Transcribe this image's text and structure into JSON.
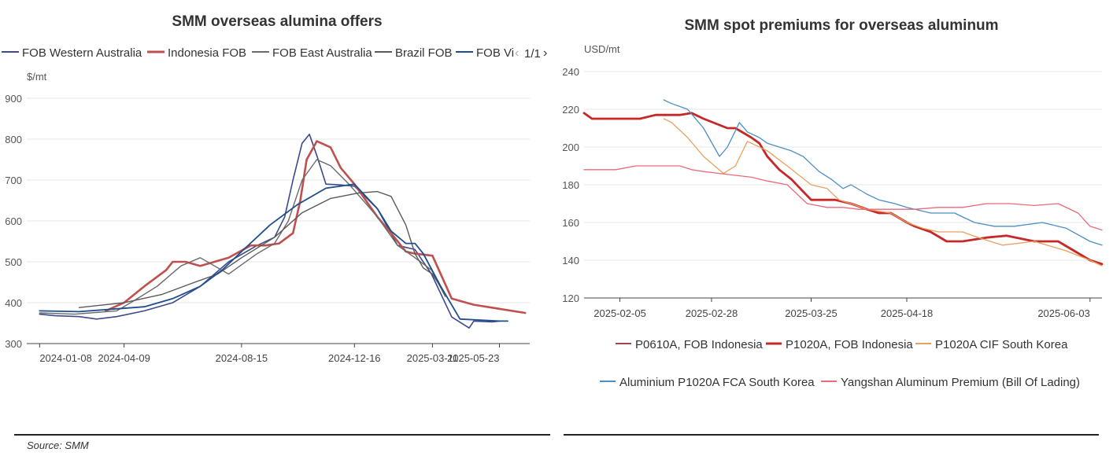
{
  "source": "Source: SMM",
  "pager": {
    "text": "1/1",
    "prev": "‹",
    "next": "›"
  },
  "chart_data": [
    {
      "type": "line",
      "title": "SMM overseas alumina offers",
      "ylabel": "$/mt",
      "ylim": [
        300,
        900
      ],
      "yticks": [
        300,
        400,
        500,
        600,
        700,
        800,
        900
      ],
      "x_tick_labels": [
        "2024-01-08",
        "2024-04-09",
        "2024-08-15",
        "2024-12-16",
        "2025-03-11",
        "2025-05-23"
      ],
      "grid": true,
      "legend_position": "top",
      "legend_visible": [
        "FOB Western Australia",
        "Indonesia FOB",
        "FOB East Australia",
        "Brazil FOB",
        "FOB Vi"
      ],
      "series": [
        {
          "name": "FOB Western Australia",
          "color": "#3b4a8c",
          "x": [
            "2024-01-08",
            "2024-01-25",
            "2024-02-20",
            "2024-03-10",
            "2024-04-01",
            "2024-05-01",
            "2024-06-01",
            "2024-07-01",
            "2024-08-01",
            "2024-09-01",
            "2024-09-20",
            "2024-10-01",
            "2024-10-10",
            "2024-10-20",
            "2024-10-28",
            "2024-11-05",
            "2024-11-15",
            "2024-12-01",
            "2024-12-16",
            "2025-01-10",
            "2025-02-01",
            "2025-02-20",
            "2025-03-10",
            "2025-04-01",
            "2025-04-20",
            "2025-04-25",
            "2025-05-15",
            "2025-05-23"
          ],
          "y": [
            372,
            368,
            366,
            360,
            366,
            380,
            400,
            440,
            500,
            540,
            560,
            610,
            700,
            790,
            812,
            760,
            690,
            688,
            685,
            630,
            540,
            530,
            470,
            365,
            338,
            355,
            353,
            355
          ]
        },
        {
          "name": "Indonesia FOB",
          "color": "#c0504d",
          "x": [
            "2024-03-20",
            "2024-04-09",
            "2024-05-01",
            "2024-05-25",
            "2024-06-01",
            "2024-06-15",
            "2024-07-01",
            "2024-08-01",
            "2024-08-25",
            "2024-09-10",
            "2024-09-25",
            "2024-10-10",
            "2024-10-18",
            "2024-10-25",
            "2024-11-05",
            "2024-11-20",
            "2024-12-01",
            "2024-12-16",
            "2025-01-10",
            "2025-01-25",
            "2025-02-10",
            "2025-02-20",
            "2025-03-11",
            "2025-04-01",
            "2025-04-25",
            "2025-05-23",
            "2025-06-20"
          ],
          "y": [
            380,
            400,
            440,
            480,
            500,
            500,
            490,
            510,
            540,
            540,
            545,
            570,
            650,
            750,
            795,
            780,
            730,
            690,
            610,
            570,
            525,
            520,
            515,
            410,
            395,
            385,
            375
          ]
        },
        {
          "name": "FOB East Australia",
          "color": "#6b6b6b",
          "x": [
            "2024-01-08",
            "2024-02-15",
            "2024-04-01",
            "2024-04-20",
            "2024-05-15",
            "2024-06-10",
            "2024-07-01",
            "2024-08-01",
            "2024-09-01",
            "2024-09-20",
            "2024-10-05",
            "2024-10-20",
            "2024-11-05",
            "2024-11-20",
            "2024-12-10",
            "2025-01-10",
            "2025-02-01",
            "2025-02-20",
            "2025-03-10",
            "2025-03-25"
          ],
          "y": [
            375,
            372,
            380,
            405,
            440,
            490,
            510,
            470,
            520,
            545,
            600,
            700,
            750,
            735,
            690,
            610,
            540,
            510,
            480,
            415
          ]
        },
        {
          "name": "Brazil FOB",
          "color": "#595959",
          "x": [
            "2024-02-20",
            "2024-04-09",
            "2024-05-20",
            "2024-06-25",
            "2024-07-20",
            "2024-08-15",
            "2024-09-20",
            "2024-10-20",
            "2024-11-20",
            "2024-12-20",
            "2025-01-10",
            "2025-01-25",
            "2025-02-10",
            "2025-02-20",
            "2025-03-01",
            "2025-03-11",
            "2025-03-25"
          ],
          "y": [
            388,
            400,
            420,
            450,
            470,
            510,
            560,
            620,
            655,
            668,
            672,
            660,
            590,
            520,
            485,
            470,
            420
          ]
        },
        {
          "name": "FOB Vi",
          "color": "#1f4e8c",
          "x": [
            "2024-01-08",
            "2024-02-20",
            "2024-04-01",
            "2024-05-01",
            "2024-06-01",
            "2024-07-01",
            "2024-07-25",
            "2024-08-15",
            "2024-09-15",
            "2024-10-15",
            "2024-11-15",
            "2024-12-16",
            "2025-01-10",
            "2025-01-25",
            "2025-02-10",
            "2025-02-20",
            "2025-03-01",
            "2025-03-20",
            "2025-04-10",
            "2025-05-23",
            "2025-06-01"
          ],
          "y": [
            380,
            378,
            385,
            390,
            410,
            440,
            480,
            525,
            590,
            640,
            680,
            690,
            630,
            575,
            545,
            545,
            520,
            440,
            360,
            355,
            355
          ]
        }
      ]
    },
    {
      "type": "line",
      "title": "SMM spot premiums for overseas aluminum",
      "ylabel": "USD/mt",
      "ylim": [
        120,
        240
      ],
      "yticks": [
        120,
        140,
        160,
        180,
        200,
        220,
        240
      ],
      "x_tick_labels": [
        "2025-02-05",
        "2025-02-28",
        "2025-03-25",
        "2025-04-18",
        "2025-06-03"
      ],
      "grid": true,
      "legend_position": "bottom",
      "series": [
        {
          "name": "P0610A, FOB Indonesia",
          "color": "#a04848",
          "x": [
            "2025-01-27",
            "2025-01-29",
            "2025-02-10",
            "2025-02-14",
            "2025-02-20",
            "2025-02-23",
            "2025-02-26",
            "2025-03-04",
            "2025-03-06",
            "2025-03-10",
            "2025-03-12",
            "2025-03-14",
            "2025-03-17",
            "2025-03-20",
            "2025-03-25",
            "2025-03-29",
            "2025-03-31",
            "2025-04-04",
            "2025-04-08",
            "2025-04-11",
            "2025-04-14",
            "2025-04-18",
            "2025-04-20",
            "2025-04-24",
            "2025-04-28",
            "2025-05-02",
            "2025-05-08",
            "2025-05-13",
            "2025-05-20",
            "2025-05-26",
            "2025-05-30",
            "2025-06-03",
            "2025-06-06"
          ],
          "y": [
            218,
            215,
            215,
            217,
            217,
            218,
            215,
            210,
            210,
            205,
            202,
            195,
            188,
            183,
            172,
            172,
            172,
            170,
            167,
            165,
            165,
            160,
            158,
            155,
            150,
            150,
            152,
            153,
            150,
            150,
            145,
            140,
            138
          ]
        },
        {
          "name": "P1020A, FOB Indonesia",
          "color": "#c62828",
          "x": [
            "2025-01-27",
            "2025-01-29",
            "2025-02-10",
            "2025-02-14",
            "2025-02-20",
            "2025-02-23",
            "2025-02-26",
            "2025-03-04",
            "2025-03-06",
            "2025-03-10",
            "2025-03-12",
            "2025-03-14",
            "2025-03-17",
            "2025-03-20",
            "2025-03-25",
            "2025-03-29",
            "2025-03-31",
            "2025-04-04",
            "2025-04-08",
            "2025-04-11",
            "2025-04-14",
            "2025-04-18",
            "2025-04-20",
            "2025-04-24",
            "2025-04-28",
            "2025-05-02",
            "2025-05-08",
            "2025-05-13",
            "2025-05-20",
            "2025-05-26",
            "2025-05-30",
            "2025-06-03",
            "2025-06-06"
          ],
          "y": [
            218,
            215,
            215,
            217,
            217,
            218,
            215,
            210,
            210,
            205,
            202,
            195,
            188,
            183,
            172,
            172,
            172,
            170,
            167,
            165,
            165,
            160,
            158,
            155,
            150,
            150,
            152,
            153,
            150,
            150,
            145,
            140,
            138
          ]
        },
        {
          "name": "P1020A CIF South Korea",
          "color": "#e8a060",
          "x": [
            "2025-02-16",
            "2025-02-18",
            "2025-02-22",
            "2025-02-26",
            "2025-03-03",
            "2025-03-06",
            "2025-03-09",
            "2025-03-14",
            "2025-03-19",
            "2025-03-22",
            "2025-03-25",
            "2025-03-29",
            "2025-04-01",
            "2025-04-04",
            "2025-04-08",
            "2025-04-14",
            "2025-04-18",
            "2025-04-22",
            "2025-04-26",
            "2025-05-02",
            "2025-05-06",
            "2025-05-12",
            "2025-05-20",
            "2025-05-28",
            "2025-06-03",
            "2025-06-06"
          ],
          "y": [
            215,
            213,
            205,
            195,
            186,
            190,
            203,
            198,
            190,
            185,
            180,
            178,
            172,
            170,
            167,
            165,
            160,
            157,
            155,
            155,
            152,
            148,
            150,
            145,
            140,
            137
          ]
        },
        {
          "name": "Aluminium P1020A FCA South Korea",
          "color": "#4a8fc7",
          "x": [
            "2025-02-16",
            "2025-02-18",
            "2025-02-22",
            "2025-02-26",
            "2025-03-02",
            "2025-03-04",
            "2025-03-07",
            "2025-03-09",
            "2025-03-12",
            "2025-03-14",
            "2025-03-17",
            "2025-03-20",
            "2025-03-23",
            "2025-03-27",
            "2025-03-30",
            "2025-04-02",
            "2025-04-04",
            "2025-04-08",
            "2025-04-11",
            "2025-04-15",
            "2025-04-18",
            "2025-04-24",
            "2025-04-30",
            "2025-05-05",
            "2025-05-10",
            "2025-05-15",
            "2025-05-22",
            "2025-05-28",
            "2025-06-03",
            "2025-06-06"
          ],
          "y": [
            225,
            223,
            220,
            210,
            195,
            200,
            213,
            208,
            205,
            202,
            200,
            198,
            195,
            187,
            183,
            178,
            180,
            175,
            172,
            170,
            168,
            165,
            165,
            160,
            158,
            158,
            160,
            157,
            150,
            148
          ]
        },
        {
          "name": "Yangshan Aluminum Premium (Bill Of Lading)",
          "color": "#e86a78",
          "x": [
            "2025-01-27",
            "2025-02-04",
            "2025-02-09",
            "2025-02-14",
            "2025-02-20",
            "2025-02-23",
            "2025-02-26",
            "2025-03-02",
            "2025-03-06",
            "2025-03-10",
            "2025-03-14",
            "2025-03-19",
            "2025-03-24",
            "2025-03-29",
            "2025-04-02",
            "2025-04-06",
            "2025-04-10",
            "2025-04-15",
            "2025-04-20",
            "2025-04-26",
            "2025-05-02",
            "2025-05-08",
            "2025-05-14",
            "2025-05-20",
            "2025-05-26",
            "2025-05-31",
            "2025-06-03",
            "2025-06-06"
          ],
          "y": [
            188,
            188,
            190,
            190,
            190,
            188,
            187,
            186,
            185,
            184,
            182,
            180,
            170,
            168,
            168,
            167,
            167,
            167,
            167,
            168,
            168,
            170,
            170,
            169,
            170,
            165,
            158,
            156
          ]
        }
      ]
    }
  ]
}
